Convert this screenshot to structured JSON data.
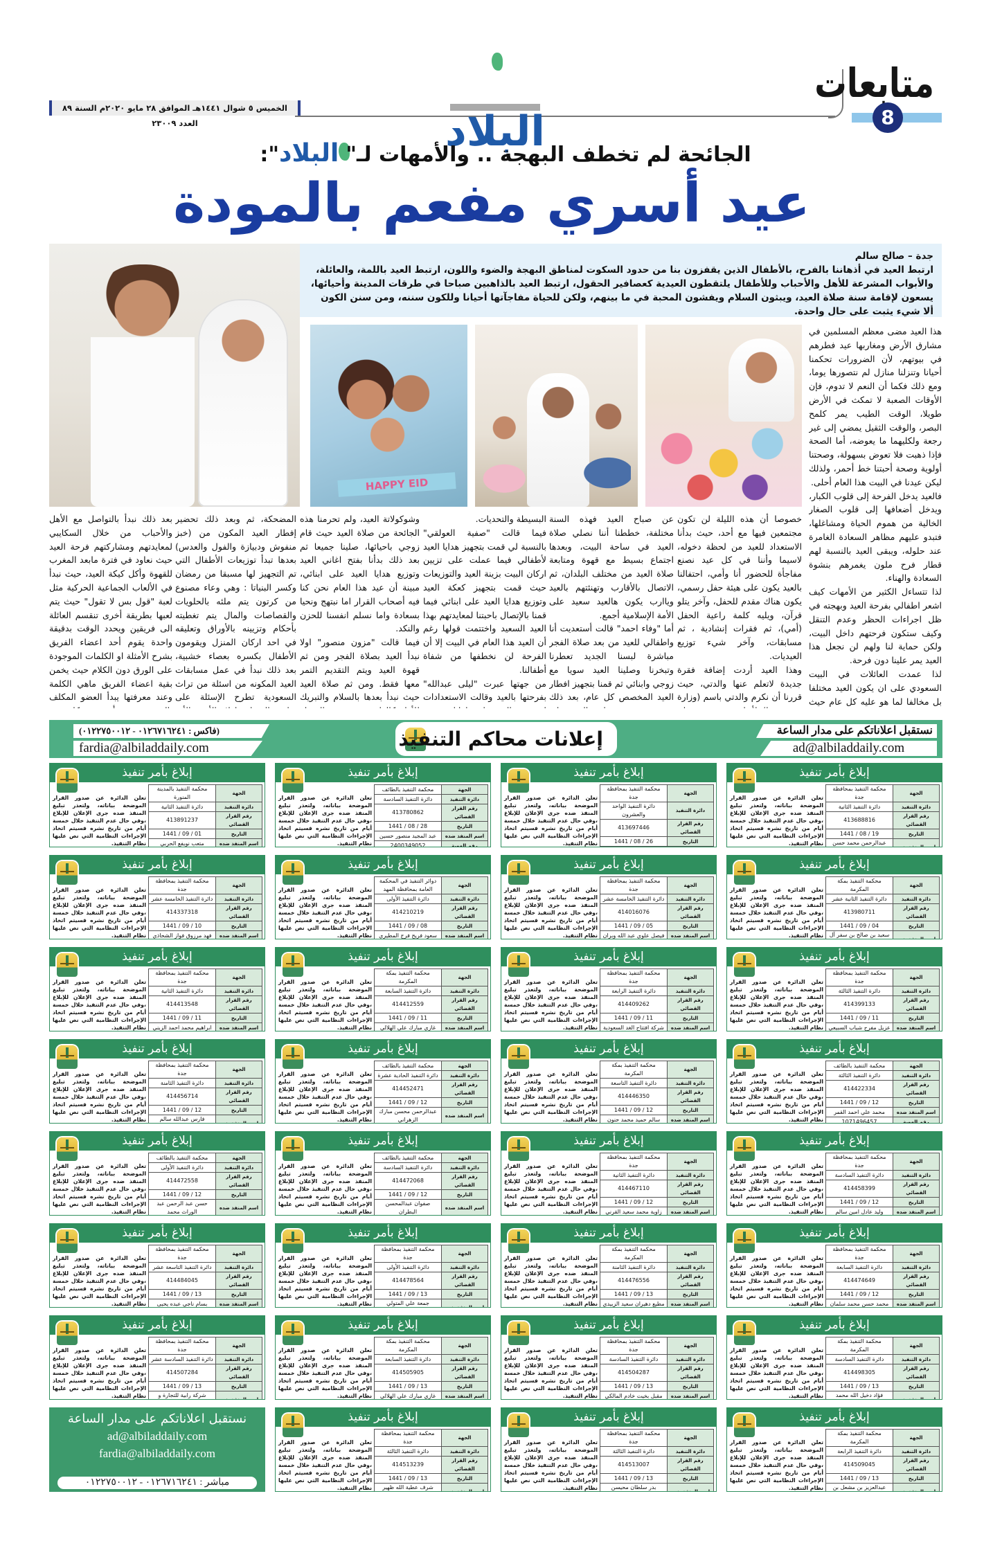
{
  "header": {
    "section_title": "متابعات",
    "page_number": "8",
    "logo_text": "البلاد",
    "date_line": "الخميس ٥ شوال ١٤٤١هـ الموافق ٢٨ مايو ٢٠٢٠م السنة ٨٩ العدد ٢٣٠٠٩",
    "subtitle_part1": "الجائحة لم تخطف البهجة .. والأمهات لـ\"",
    "subtitle_part2": "\":",
    "headline": "عيد أسري مفعم بالمودة",
    "colors": {
      "headline": "#1a3ca0",
      "page_badge": "#1d2f7a",
      "logo": "#1f5aa8",
      "ads_green": "#2f8f5e"
    }
  },
  "article": {
    "byline": "جدة – صالح سالم",
    "lede": "ارتبط العيد في أذهاننا بالفرح، بالأطفال الذين يقفزون بنا من حدود السكوت لمناطق البهجة والضوء واللون، ارتبط العيد باللمة، والعائلة، والأبواب المشرعة للأهل والأحباب وللأطفال يلتقطون العيدية كعصافير الحقول، ارتبط العيد بالذاهبين صباحا في طرقات المدينة وأحيائها، يسعون لإقامة سنة صلاة العيد، ويبثون السلام ويفشون المحبة في ما بينهم، ولكن للحياة مفاجآتها أحيانا وللكون سننه، ومن سنن الكون ألا شيء يثبت على حال واحدة.",
    "photo_caption_text": "HAPPY EID",
    "columns": [
      [
        "هذا العيد مضى معظم المسلمين في مشارق الأرض ومغاربها عيد فطرهم في بيوتهم، لأن الضرورات تحكمنا أحيانا وتنزلنا منازل لم نتصورها يوما، ومع ذلك فكما أن النعم لا تدوم، فإن الأوقات الصعبة لا تمكث في الأرض طويلا، الوقت الطيب يمر كلمح البصر، والوقت الثقيل يمضي إلى غير رجعة ولكليهما ما يعوضه، أما الصحة فإذا ذهبت فلا تعوض بسهولة، وصحتنا أولوية وصحة أحبتنا خط أحمر، ولذلك ليكن عيدنا في البيت هذا العام أحلى.",
        "فالعيد يدخل الفرحة إلى قلوب الكبار، ويدخل أضعافها إلى قلوب الصغار الخالية من هموم الحياة ومشاغلها، فتبدو عليهم مظاهر السعادة الغامرة عند حلوله، ويبقى العيد بالنسبة لهم قطار فرح ملون يغمرهم بنشوة السعادة والهناء.",
        "لذا تتساءل الكثير من الأمهات كيف اشعر اطفالي بفرحة العيد وبهجته في ظل اجراءات الحظر وعدم التنقل وكيف ستكون فرحتهم داخل البيت، ولكن حماية لنا ولهم لن نجعل هذا العيد يمر علينا دون فرحة.",
        "لذا عمدت العائلات في البيت السعودي على ان يكون العيد مختلفا بل مخالفا لما هو عليه كل عام حيث عملت الامهات على تنسيق المنزل بكل ألوان الفرح والسعادة التي تبهج الأسرة دون شعور بالتغيير \"هديل القاسم\" قررت أن تجعل من اجواء العيد داخل المنزل اجواء عيد كل عام حيث قالت قررت والدتي أن نحتفل في بيتنا بالعيد في مساء أول يوم العيد،"
      ],
      [
        "خصوصا أن هذه الليلة لن تكون مجتمعين فيها مع أحد، حيث بدأنا الاستعداد للعيد من لحظة دخوله، لاسيما وأننا في كل عيد نصنع مفاجأة للحضور أنا وأمي، احتفالنا بالعيد يكون على هيئة حفل رسمي، يكون هناك مقدم للحفل، وآخر يتلو قرآن، ويليه كلمة راعية الحفل (أمي)، ثم فقرات إنشادية ، ثم مسابقات، وآخر شيء توزيع العيديات.",
        "وهذا العيد أردت إضافة فقرة جديدة لاتعلم عنها والدتي، حيث قررنا أن نكرم والدتي باسم (وزارة صحة بيتنا) لأنها منذ ٣ شهور لم تجتمع مع أختي وأحفادها والتزمت بتعليمات وزارة الصحة بالتباعد الاجتماعي، فيارب أنها تفرح ويكون هذا دافع لها لتحافظ على هذا التباعد حتى يعبر العيد وجلي هذه الغمة."
      ],
      [
        "عن صباح العيد فهذه السنة مختلفة، خططنا أننا نصلي صلاة العيد في ساحة البيت، وبعدها اجتماع بسيط مع قهوة ومتابعة صلاة العيد من مختلف البلدان، ثم الاتصال بالأقارب وتهنئتهم بالعيد وياارب يكون هالعيد سعيد على الأمة الإسلامية أجمع.",
        "أما \"وفاء احمد\" قالت أستعديت أنا واطفالي للعيد من بعد صلاة الفجر مباشرة لبسنا الجديد تعطرنا وتبخرنا وصلينا العيد سويا مع زوجي وابنائي ثم قمنا بتجهيز افطار العيد المخصص كل عام، بعد ذلك قمت بتوزيع عيديات العيد على أبنائي إلى صلاة العصر حينها قمت بصناعة كعكة العيد سويا ثم بعد صلاة المغرب بدأنا فقرات احتفالنا بالعيد والتي شملت على المسابقات والألعاب"
      ],
      [
        "البسيطة والتحديات.",
        "فيما قالت \"صفية العولقي\" بالنسبة لي قمت بتجهيز هدايا العيد لأطفالي فيما عملت على تزيين اركان البيت بزينة العيد والتوزيعات حيث قمت بتجهيز كعكة العيد وتوزيع هدايا العيد على ابنائي فيما قمنا بالإتصال باحبتنا لمعايدتهم بهذا العيد السعيد واختتمت قولها رغم أن العيد هذا العام في البيت إلا أن الفرحة لن نخطفها من شفاة أطفالنا.",
        "من جهتها عبرت \"ليلى عبدالله\" بفرحتها بالعيد وقالت الاستعدادات لم تتغير بالنسبة لي ولعائلتي حيث أنني عملت بكل استطاعتي على ألا أحرم عائلتي من اجواء العيد وفرحته، حيث قمت على تزيين صالون الضيوف بالإضافة الى تجهيزي للقهوة"
      ],
      [
        "وشوكولاتة العيد، ولم تحرمنا هذه الجائحة من صلاة العيد حيث قام زوجي باحيائها، صلينا جميعا ثم بعد ذلك بدأنا بفتح اغاني العيد وتوزيع هدايا العيد على ابنائي، مبينة أن عيد هذا العام نحن كنا فيه أصحاب القرار اما نبتهج ونحيا بسعادة واما نسلم انفسنا للحزن والنكد.",
        "فيما قالت \"مزون منصور\" اولا نبدأ العيد بصلاة الفجر ومن ثم قهوة العيد ويتم التقديم التمر معها فقط. ومن ثم صلاة العيد حيث نبدأ بعدها بالسلام والتبريك للأهل كالعادة، حيث بعد التبريك بالعيد نبدأ بتناول حلويات العيد وحلاوة الحجاز اللبنية والغريبة التي تم صنعها بالمنزل قبل العيد بعده ايام قليلة وشرب القهوة وتبادل المواقف والقصص"
      ],
      [
        "المضحكة، ثم وبعد ذلك تحضير إفطار العيد المكون من (خبز منفوش ودبيازة والفول والعدس) بعدها تبدأ توزيعات الأطفال التي تم التجهيز لها مسبقا من رمضان وكسر البنياتا : وهي وعاء مصنوع من كرتون يتم ملئه بالحلويات والقصاصات والمال يتم تغطيته بأحكام وتزيينه بالأوراق وتعليقه في احد اركان المنزل ويقومون الأطفال بكسره بعصاء خشبية، بعد ذلك نبدأ في عمل مسابقات العيد المكونه من اسئلة من تراث السعودية تطرح الإسئلة على فئات المنزل اولا الأم والأب واخيرا الاخوة الصغار يوجه لهم سؤال والفائز الأول يقدم له صندوق يختار منه دون رؤية مابداخله (والذي يتم وضع فيه المال من جميع الفئات النقدية)"
      ],
      [
        "بعد ذلك نبدأ بالتواصل مع الأهل والأحباب من خلال السكايبي لمعايدتهم ومشاركتهم فرحة العيد حيث نعاود في فترة مابعد المغرب للقهوة وأكل كيكة العيد، حيث نبدأ في الألعاب الجماعية الحركية مثل لعبة \"قول بس لا تقول\" حيث يتم لعبها بطريقة أخرى تنقسم العائلة الى فريقين ويحدد الوقت بدقيقة واحدة يقوم أحد اعضاء الفريق بشرح الأمثلة او الكلمات الموجودة على الورق دون الكلام حيث يخمن بقية اعضاء الفريق ماهي الكلمة وعند معرفتها يبدأ العضو المكلف بالشرح حيث أنه في كل عيد بالعادة تكون وليمة العشاء اللحم والرز وبعض المقبلات، حيث تبدأ جلسة الشاي الأخضر بالنعناع بعد العشاء وتبادل الأحاديث الودية بين أفراد العائلة."
      ]
    ]
  },
  "ads_banner": {
    "title": "إعلانات محاكم التنفيذ",
    "receive_text": "نستقبل اعلاناتكم على مدار الساعة",
    "email_ads": "ad@albiladdaily.com",
    "fax_text": "(فاكس : ٠١٢٦٧١٦٢٤١ - ٠١٢٢٧٥٠٠١٢)",
    "email_fardia": "fardia@albiladdaily.com"
  },
  "ad_template": {
    "title": "إبلاغ بأمر تنفيذ",
    "body": "تعلن الدائرة عن صدور القرار الموضحة بياناته، ولتعذر تبليغ المنفذ ضده جرى الإعلان للإبلاغ ،وفي حال عدم التنفيذ خلال خمسة أيام من تاريخ نشره فسيتم اتخاذ الإجراءات النظامية التي نص عليها نظام التنفيذ.",
    "labels": [
      "الجهة",
      "دائرة التنفيذ",
      "رقم القرار القضائي",
      "التاريخ",
      "اسم المنفذ ضده",
      "رقم الهوية"
    ]
  },
  "ads_columns": [
    [
      [
        "محكمة التنفيذ بمحافظة جدة",
        "دائرة التنفيذ الثانية",
        "413688816",
        "19 / 08 / 1441",
        "عبدالرحمن محمد حسن محمد",
        "2242534184"
      ],
      [
        "محكمة التنفيذ بمكة المكرمة",
        "دائرة التنفيذ الثانية عشر",
        "413980711",
        "04 / 09 / 1441",
        "سعيد بن صالح بن سفر آل عوض",
        "1080260736"
      ],
      [
        "محكمة التنفيذ بمحافظة جدة",
        "دائرة التنفيذ الثالثة",
        "414399133",
        "11 / 09 / 1441",
        "عزيل مفرح شباب السبيعي",
        "1035138484"
      ],
      [
        "محكمة التنفيذ بالطائف",
        "دائرة التنفيذ الثالثة",
        "414422334",
        "12 / 09 / 1441",
        "محمد علي احمد القمر",
        "1071496457"
      ],
      [
        "محكمة التنفيذ بمحافظة جدة",
        "دائرة التنفيذ السادسة",
        "414458399",
        "12 / 09 / 1441",
        "وليد عادل امين سالم",
        "2420564177"
      ],
      [
        "محكمة التنفيذ بمحافظة جدة",
        "دائرة التنفيذ السابعة",
        "414474649",
        "12 / 09 / 1441",
        "محمد حسن محمد سلمان",
        "1081720334"
      ],
      [
        "محكمة التنفيذ بمكة المكرمة",
        "دائرة التنفيذ السادسة",
        "414498305",
        "13 / 09 / 1441",
        "فؤاد دخيل الله محمد اللحياني",
        "1013196835"
      ],
      [
        "محكمة التنفيذ بمكة المكرمة",
        "دائرة التنفيذ الرابعة",
        "414509045",
        "13 / 09 / 1441",
        "عبدالعزيز بن مشعل بن عبدالعزيز الجميعي",
        "1003360128"
      ]
    ],
    [
      [
        "محكمة التنفيذ بمحافظة جدة",
        "دائرة التنفيذ الواحد والعشرون",
        "413697446",
        "26 / 08 / 1441",
        "محمد عذرب البي عطيه الله الحبيشي",
        "1087397632"
      ],
      [
        "محكمة التنفيذ بمحافظة جدة",
        "دائرة التنفيذ الخامسة عشر",
        "414016076",
        "05 / 09 / 1441",
        "فيصل علوي عبد الله وبران",
        "2349226122"
      ],
      [
        "محكمة التنفيذ بمحافظة جدة",
        "دائرة التنفيذ الرابعة",
        "414409262",
        "11 / 09 / 1441",
        "شركة افتتاح الغد السعودية",
        "4030092507"
      ],
      [
        "محكمة التنفيذ بمكة المكرمة",
        "دائرة التنفيذ التاسعة",
        "414446350",
        "12 / 09 / 1441",
        "سالم حميد محمد حنون",
        "2165086360"
      ],
      [
        "محكمة التنفيذ بمحافظة جدة",
        "دائرة التنفيذ الثانية",
        "414467110",
        "12 / 09 / 1441",
        "زاوية محمد سعيد القرني",
        "1064729443"
      ],
      [
        "محكمة التنفيذ بمكة المكرمة",
        "دائرة التنفيذ الثامنة",
        "414476556",
        "13 / 09 / 1441",
        "مطيع دهيران سعيد الزبيدي",
        "1064355797"
      ],
      [
        "محكمة التنفيذ بمحافظة جدة",
        "دائرة التنفيذ السادسة",
        "414504287",
        "13 / 09 / 1441",
        "مقبل بخيت خادم المالكي",
        "1027220418"
      ],
      [
        "محكمة التنفيذ بمحافظة جدة",
        "دائرة التنفيذ الثالثة",
        "414513007",
        "13 / 09 / 1441",
        "بدر سلطان محيسن الكلثمي",
        "1092223484"
      ]
    ],
    [
      [
        "محكمة التنفيذ بالطائف",
        "دائرة التنفيذ السادسة",
        "413780862",
        "28 / 08 / 1441",
        "عبد المجيد منصور حسين",
        "2400349052"
      ],
      [
        "دوائر التنفيذ في المحكمة العامة بمحافظة المهد",
        "دائرة التنفيذ الأولى",
        "414210219",
        "08 / 09 / 1441",
        "سعود فريح فرج المطيري",
        "1024660635"
      ],
      [
        "محكمة التنفيذ بمكة المكرمة",
        "دائرة التنفيذ السابعة",
        "414412559",
        "11 / 09 / 1441",
        "غازي مبارك علي الهلالي",
        "1074653245"
      ],
      [
        "محكمة التنفيذ بالطائف",
        "دائرة التنفيذ الحادية عشرة",
        "414452471",
        "12 / 09 / 1441",
        "عبدالرحمن محسن مبارك الزهراني",
        "1001290194"
      ],
      [
        "محكمة التنفيذ بالطائف",
        "دائرة التنفيذ السادسة",
        "414472068",
        "12 / 09 / 1441",
        "صفوان عبدالمحسن البطران",
        "2327605800"
      ],
      [
        "محكمة التنفيذ بمحافظة جدة",
        "دائرة التنفيذ الأولى",
        "414478564",
        "13 / 09 / 1441",
        "جمعة علي المتولي الجوهري",
        "2324630256"
      ],
      [
        "محكمة التنفيذ بمكة المكرمة",
        "دائرة التنفيذ السابعة",
        "414505905",
        "13 / 09 / 1441",
        "غازي مبارك علي الهلالي",
        "1074653245"
      ],
      [
        "محكمة التنفيذ بمحافظة جدة",
        "دائرة التنفيذ الثالثة",
        "414513239",
        "13 / 09 / 1441",
        "شرف عطية الله ظهير العمري",
        "1078247390"
      ]
    ],
    [
      [
        "محكمة التنفيذ بالمدينة المنورة",
        "دائرة التنفيذ الثانية",
        "413891237",
        "01 / 09 / 1441",
        "متعب نويفع الحربي",
        "1002822094"
      ],
      [
        "محكمة التنفيذ بمحافظة جدة",
        "دائرة التنفيذ الخامسة عشر",
        "414337318",
        "10 / 09 / 1441",
        "فهد مرزوق فواز الشحاذي",
        "1001973500"
      ],
      [
        "محكمة التنفيذ بمحافظة جدة",
        "دائرة التنفيذ الثانية",
        "414413548",
        "11 / 09 / 1441",
        "ابراهيم محمد احمد الزيني",
        "1066902543"
      ],
      [
        "محكمة التنفيذ بمحافظة جدة",
        "دائرة التنفيذ الثامنة",
        "414456714",
        "12 / 09 / 1441",
        "فارس عبدالله سالم عبدالسلام",
        "1020386573"
      ],
      [
        "محكمة التنفيذ بالطائف",
        "دائرة التنفيذ الأولى",
        "414472558",
        "12 / 09 / 1441",
        "حسن عبد الرحمن عبد الوراث محمد",
        "1086372727"
      ],
      [
        "محكمة التنفيذ بمحافظة جدة",
        "دائرة التنفيذ التاسعة عشر",
        "414484045",
        "13 / 09 / 1441",
        "بسام ناجي عبده يحيى",
        "2468098633"
      ],
      [
        "محكمة التنفيذ بمحافظة جدة",
        "دائرة التنفيذ السادسة عشر",
        "414507284",
        "13 / 09 / 1441",
        "شركة رابية للتجارة و الزراعة",
        "4030008659"
      ]
    ]
  ],
  "contact_box": {
    "line1": "نستقبل اعلاناتكم على مدار الساعة",
    "email_ads": "ad@albiladdaily.com",
    "email_fardia": "fardia@albiladdaily.com",
    "phone": "مباشر : ٠١٢٦٧١٦٢٤١ - ٠١٢٢٧٥٠٠١٢"
  }
}
